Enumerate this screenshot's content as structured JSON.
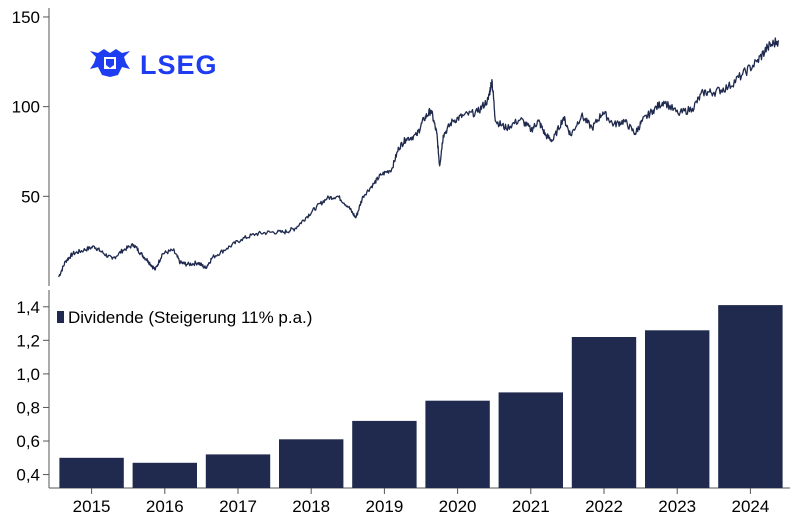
{
  "logo": {
    "text": "LSEG",
    "color": "#1E3CF0"
  },
  "colors": {
    "line": "#1F2A4E",
    "bar": "#1F2A4E",
    "axis": "#555555"
  },
  "chart_data": [
    {
      "type": "line",
      "name": "price",
      "title": "",
      "xlabel": "",
      "ylabel": "",
      "y_ticks": [
        50,
        100,
        150
      ],
      "ylim": [
        0,
        155
      ],
      "xlim": [
        2014.8,
        2024.95
      ],
      "grid": false,
      "points": [
        [
          2014.85,
          5
        ],
        [
          2014.95,
          14
        ],
        [
          2015.05,
          18
        ],
        [
          2015.2,
          20
        ],
        [
          2015.35,
          22
        ],
        [
          2015.45,
          19
        ],
        [
          2015.6,
          15
        ],
        [
          2015.75,
          20
        ],
        [
          2015.9,
          23
        ],
        [
          2016.0,
          18
        ],
        [
          2016.1,
          14
        ],
        [
          2016.2,
          9
        ],
        [
          2016.3,
          18
        ],
        [
          2016.45,
          20
        ],
        [
          2016.55,
          13
        ],
        [
          2016.65,
          12
        ],
        [
          2016.8,
          13
        ],
        [
          2016.9,
          10
        ],
        [
          2017.0,
          16
        ],
        [
          2017.2,
          21
        ],
        [
          2017.4,
          26
        ],
        [
          2017.6,
          29
        ],
        [
          2017.8,
          30
        ],
        [
          2018.0,
          30
        ],
        [
          2018.15,
          32
        ],
        [
          2018.3,
          38
        ],
        [
          2018.45,
          44
        ],
        [
          2018.6,
          49
        ],
        [
          2018.75,
          50
        ],
        [
          2018.9,
          44
        ],
        [
          2019.0,
          38
        ],
        [
          2019.1,
          50
        ],
        [
          2019.25,
          57
        ],
        [
          2019.35,
          62
        ],
        [
          2019.5,
          65
        ],
        [
          2019.6,
          77
        ],
        [
          2019.7,
          82
        ],
        [
          2019.85,
          84
        ],
        [
          2019.95,
          93
        ],
        [
          2020.05,
          98
        ],
        [
          2020.13,
          85
        ],
        [
          2020.17,
          67
        ],
        [
          2020.22,
          84
        ],
        [
          2020.35,
          92
        ],
        [
          2020.5,
          95
        ],
        [
          2020.7,
          97
        ],
        [
          2020.85,
          104
        ],
        [
          2020.9,
          115
        ],
        [
          2020.95,
          92
        ],
        [
          2021.1,
          88
        ],
        [
          2021.3,
          93
        ],
        [
          2021.45,
          87
        ],
        [
          2021.55,
          92
        ],
        [
          2021.65,
          84
        ],
        [
          2021.75,
          81
        ],
        [
          2021.9,
          94
        ],
        [
          2022.0,
          84
        ],
        [
          2022.15,
          95
        ],
        [
          2022.3,
          88
        ],
        [
          2022.45,
          97
        ],
        [
          2022.6,
          90
        ],
        [
          2022.75,
          92
        ],
        [
          2022.9,
          85
        ],
        [
          2023.0,
          92
        ],
        [
          2023.15,
          98
        ],
        [
          2023.3,
          103
        ],
        [
          2023.5,
          96
        ],
        [
          2023.7,
          99
        ],
        [
          2023.85,
          108
        ],
        [
          2024.0,
          108
        ],
        [
          2024.2,
          111
        ],
        [
          2024.4,
          118
        ],
        [
          2024.6,
          125
        ],
        [
          2024.75,
          133
        ],
        [
          2024.9,
          137
        ]
      ]
    },
    {
      "type": "bar",
      "name": "dividend",
      "legend": "Dividende (Steigerung 11% p.a.)",
      "legend_position": "top-left",
      "categories": [
        "2015",
        "2016",
        "2017",
        "2018",
        "2019",
        "2020",
        "2021",
        "2022",
        "2023",
        "2024"
      ],
      "series": [
        {
          "name": "Dividende",
          "values": [
            0.5,
            0.47,
            0.52,
            0.61,
            0.72,
            0.84,
            0.89,
            1.22,
            1.26,
            1.41
          ]
        }
      ],
      "y_ticks": [
        "0,4",
        "0,6",
        "0,8",
        "1,0",
        "1,2",
        "1,4"
      ],
      "ylim": [
        0.32,
        1.5
      ],
      "grid": false
    }
  ]
}
